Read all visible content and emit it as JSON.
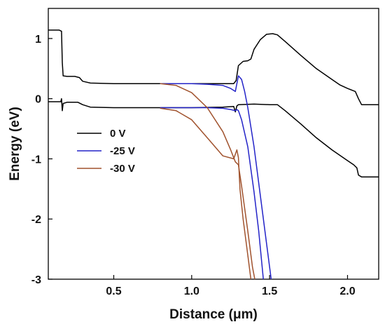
{
  "chart_data": {
    "type": "line",
    "title": "",
    "xlabel": "Distance (μm)",
    "ylabel": "Energy (eV)",
    "xlim": [
      0.08,
      2.2
    ],
    "ylim": [
      -3,
      1.5
    ],
    "xticks": [
      {
        "value": 0.5,
        "label": "0.5"
      },
      {
        "value": 1.0,
        "label": "1.0"
      },
      {
        "value": 1.5,
        "label": "1.5"
      },
      {
        "value": 2.0,
        "label": "2.0"
      }
    ],
    "yticks": [
      {
        "value": 1,
        "label": "1"
      },
      {
        "value": 0,
        "label": "0"
      },
      {
        "value": -1,
        "label": "-1"
      },
      {
        "value": -2,
        "label": "-2"
      },
      {
        "value": -3,
        "label": "-3"
      }
    ],
    "grid": false,
    "legend_position": "center-left",
    "series": [
      {
        "name": "0 V",
        "color": "#000000",
        "bands": [
          [
            [
              0.08,
              1.14
            ],
            [
              0.15,
              1.14
            ],
            [
              0.165,
              1.12
            ],
            [
              0.17,
              0.6
            ],
            [
              0.175,
              0.38
            ],
            [
              0.2,
              0.37
            ],
            [
              0.25,
              0.37
            ],
            [
              0.28,
              0.35
            ],
            [
              0.3,
              0.29
            ],
            [
              0.35,
              0.26
            ],
            [
              0.5,
              0.25
            ],
            [
              0.8,
              0.25
            ],
            [
              1.0,
              0.25
            ],
            [
              1.2,
              0.25
            ],
            [
              1.27,
              0.25
            ],
            [
              1.285,
              0.3
            ],
            [
              1.3,
              0.55
            ],
            [
              1.33,
              0.62
            ],
            [
              1.36,
              0.63
            ],
            [
              1.38,
              0.66
            ],
            [
              1.4,
              0.82
            ],
            [
              1.44,
              0.98
            ],
            [
              1.48,
              1.07
            ],
            [
              1.52,
              1.08
            ],
            [
              1.55,
              1.06
            ],
            [
              1.6,
              0.95
            ],
            [
              1.7,
              0.72
            ],
            [
              1.8,
              0.5
            ],
            [
              1.9,
              0.32
            ],
            [
              1.95,
              0.23
            ],
            [
              2.0,
              0.17
            ],
            [
              2.05,
              0.12
            ],
            [
              2.07,
              0.0
            ],
            [
              2.09,
              -0.1
            ],
            [
              2.15,
              -0.1
            ],
            [
              2.2,
              -0.1
            ]
          ],
          [
            [
              0.08,
              -0.05
            ],
            [
              0.15,
              -0.05
            ],
            [
              0.16,
              -0.05
            ],
            [
              0.165,
              0.0
            ],
            [
              0.17,
              -0.2
            ],
            [
              0.175,
              -0.08
            ],
            [
              0.2,
              -0.06
            ],
            [
              0.27,
              -0.06
            ],
            [
              0.3,
              -0.1
            ],
            [
              0.35,
              -0.14
            ],
            [
              0.5,
              -0.15
            ],
            [
              0.8,
              -0.15
            ],
            [
              1.0,
              -0.15
            ],
            [
              1.2,
              -0.14
            ],
            [
              1.27,
              -0.13
            ],
            [
              1.28,
              -0.22
            ],
            [
              1.29,
              -0.12
            ],
            [
              1.3,
              -0.1
            ],
            [
              1.4,
              -0.09
            ],
            [
              1.5,
              -0.1
            ],
            [
              1.55,
              -0.1
            ],
            [
              1.6,
              -0.2
            ],
            [
              1.7,
              -0.42
            ],
            [
              1.8,
              -0.65
            ],
            [
              1.9,
              -0.85
            ],
            [
              2.0,
              -1.03
            ],
            [
              2.04,
              -1.1
            ],
            [
              2.06,
              -1.15
            ],
            [
              2.07,
              -1.27
            ],
            [
              2.09,
              -1.3
            ],
            [
              2.2,
              -1.3
            ]
          ]
        ]
      },
      {
        "name": "-25 V",
        "color": "#2323c8",
        "bands": [
          [
            [
              0.8,
              0.25
            ],
            [
              1.0,
              0.25
            ],
            [
              1.1,
              0.24
            ],
            [
              1.2,
              0.22
            ],
            [
              1.25,
              0.17
            ],
            [
              1.28,
              0.12
            ],
            [
              1.29,
              0.25
            ],
            [
              1.3,
              0.38
            ],
            [
              1.32,
              0.32
            ],
            [
              1.34,
              0.12
            ],
            [
              1.36,
              -0.15
            ],
            [
              1.4,
              -0.8
            ],
            [
              1.44,
              -1.6
            ],
            [
              1.48,
              -2.4
            ],
            [
              1.51,
              -3.0
            ]
          ],
          [
            [
              0.8,
              -0.15
            ],
            [
              1.0,
              -0.15
            ],
            [
              1.1,
              -0.15
            ],
            [
              1.2,
              -0.16
            ],
            [
              1.25,
              -0.18
            ],
            [
              1.28,
              -0.2
            ],
            [
              1.29,
              -0.18
            ],
            [
              1.3,
              -0.2
            ],
            [
              1.32,
              -0.35
            ],
            [
              1.36,
              -0.8
            ],
            [
              1.4,
              -1.55
            ],
            [
              1.43,
              -2.2
            ],
            [
              1.46,
              -3.0
            ]
          ]
        ]
      },
      {
        "name": "-30 V",
        "color": "#a0522d",
        "bands": [
          [
            [
              0.8,
              0.25
            ],
            [
              0.9,
              0.22
            ],
            [
              1.0,
              0.1
            ],
            [
              1.1,
              -0.15
            ],
            [
              1.2,
              -0.55
            ],
            [
              1.25,
              -0.85
            ],
            [
              1.28,
              -1.05
            ],
            [
              1.3,
              -1.1
            ],
            [
              1.32,
              -1.45
            ],
            [
              1.36,
              -2.2
            ],
            [
              1.39,
              -2.8
            ],
            [
              1.405,
              -3.0
            ]
          ],
          [
            [
              0.8,
              -0.16
            ],
            [
              0.9,
              -0.2
            ],
            [
              1.0,
              -0.35
            ],
            [
              1.1,
              -0.65
            ],
            [
              1.2,
              -0.95
            ],
            [
              1.27,
              -1.0
            ],
            [
              1.29,
              -0.85
            ],
            [
              1.3,
              -0.98
            ],
            [
              1.31,
              -1.5
            ],
            [
              1.33,
              -2.0
            ],
            [
              1.36,
              -2.6
            ],
            [
              1.38,
              -3.0
            ]
          ]
        ]
      }
    ]
  }
}
